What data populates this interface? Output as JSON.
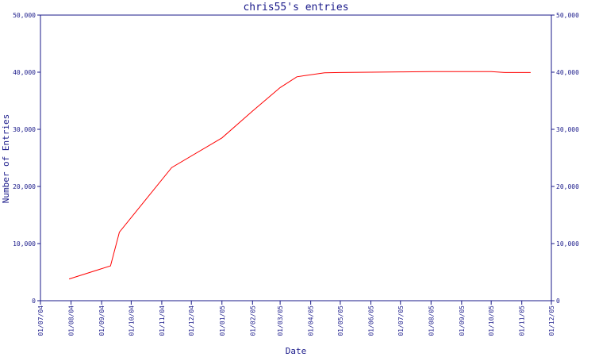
{
  "chart_data": {
    "type": "line",
    "title": "chris55's entries",
    "xlabel": "Date",
    "ylabel": "Number of Entries",
    "ylim": [
      0,
      50000
    ],
    "y_ticks": [
      "0",
      "10,000",
      "20,000",
      "30,000",
      "40,000",
      "50,000"
    ],
    "y_tick_values": [
      0,
      10000,
      20000,
      30000,
      40000,
      50000
    ],
    "x_ticks": [
      "01/07/04",
      "01/08/04",
      "01/09/04",
      "01/10/04",
      "01/11/04",
      "01/12/04",
      "01/01/05",
      "01/02/05",
      "01/03/05",
      "01/04/05",
      "01/05/05",
      "01/06/05",
      "01/07/05",
      "01/08/05",
      "01/09/05",
      "01/10/05",
      "01/11/05",
      "01/12/05"
    ],
    "xlim": [
      "2004-07-01",
      "2005-12-01"
    ],
    "grid": false,
    "series": [
      {
        "color": "#ff0000",
        "x": [
          "2004-07-30",
          "2004-09-10",
          "2004-09-19",
          "2004-11-11",
          "2005-01-01",
          "2005-02-01",
          "2005-03-01",
          "2005-03-18",
          "2005-04-15",
          "2005-05-01",
          "2005-06-01",
          "2005-07-01",
          "2005-08-01",
          "2005-09-01",
          "2005-10-01",
          "2005-10-15",
          "2005-11-10"
        ],
        "y": [
          3800,
          6100,
          12000,
          23300,
          28500,
          33200,
          37300,
          39200,
          39900,
          39950,
          40000,
          40050,
          40100,
          40100,
          40100,
          39950,
          39950
        ]
      }
    ]
  }
}
